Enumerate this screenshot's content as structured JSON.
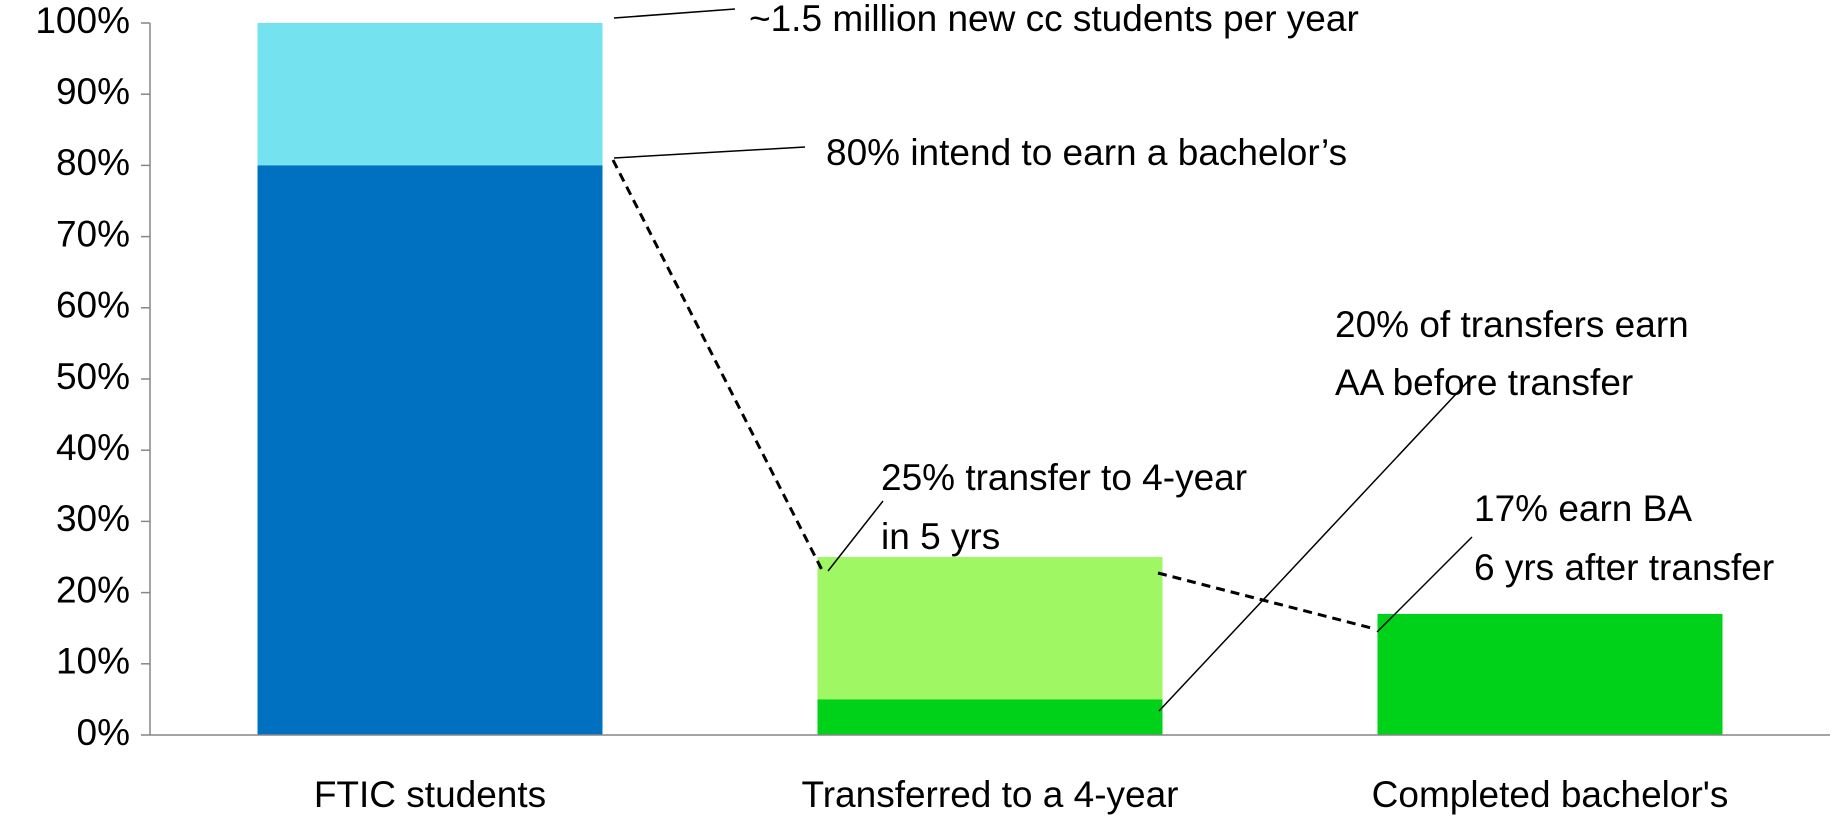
{
  "chart_data": {
    "type": "stacked_bar",
    "categories": [
      "FTIC students",
      "Transferred to a 4-year",
      "Completed bachelor's"
    ],
    "series": [
      {
        "colors": [
          "#0070c0",
          "#00d21a",
          "#00d21a"
        ],
        "values": [
          80,
          5,
          17
        ]
      },
      {
        "colors": [
          "#75e3ef",
          "#a0f764",
          null
        ],
        "values": [
          20,
          20,
          null
        ]
      }
    ],
    "ylim": [
      0,
      100
    ],
    "yticks": [
      {
        "value": 0,
        "label": "0%"
      },
      {
        "value": 10,
        "label": "10%"
      },
      {
        "value": 20,
        "label": "20%"
      },
      {
        "value": 30,
        "label": "30%"
      },
      {
        "value": 40,
        "label": "40%"
      },
      {
        "value": 50,
        "label": "50%"
      },
      {
        "value": 60,
        "label": "60%"
      },
      {
        "value": 70,
        "label": "70%"
      },
      {
        "value": 80,
        "label": "80%"
      },
      {
        "value": 90,
        "label": "90%"
      },
      {
        "value": 100,
        "label": "100%"
      }
    ],
    "grid": false,
    "annotations": [
      {
        "lines": [
          "~1.5 million new cc students per year"
        ]
      },
      {
        "lines": [
          "80% intend to earn a bachelor’s"
        ]
      },
      {
        "lines": [
          "25% transfer to 4-year",
          "in 5 yrs"
        ]
      },
      {
        "lines": [
          "20% of transfers earn",
          "AA before transfer"
        ]
      },
      {
        "lines": [
          "17% earn BA",
          "6 yrs after transfer"
        ]
      }
    ]
  }
}
